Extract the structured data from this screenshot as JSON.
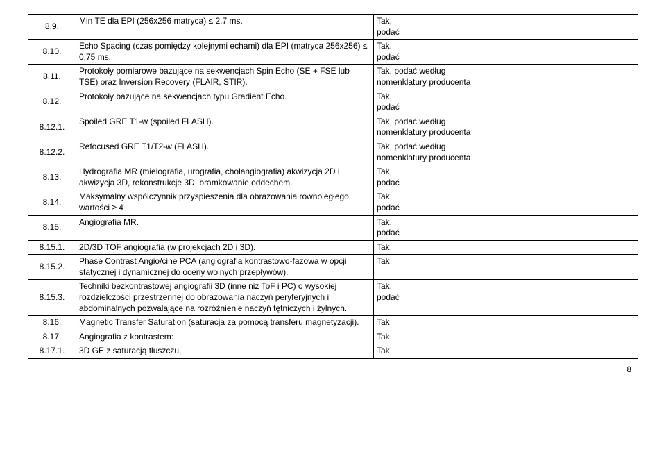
{
  "rows": [
    {
      "num": "8.9.",
      "desc": "Min TE dla EPI (256x256 matryca) ≤ 2,7 ms.",
      "req": "Tak,\npodać"
    },
    {
      "num": "8.10.",
      "desc": "Echo Spacing (czas pomiędzy kolejnymi echami) dla EPI (matryca 256x256) ≤ 0,75 ms.",
      "req": "Tak,\npodać"
    },
    {
      "num": "8.11.",
      "desc": "Protokoły pomiarowe bazujące na sekwencjach Spin Echo (SE + FSE lub TSE) oraz Inversion Recovery (FLAIR, STIR).",
      "req": "Tak, podać według nomenklatury producenta"
    },
    {
      "num": "8.12.",
      "desc": "Protokoły bazujące na sekwencjach typu Gradient Echo.",
      "req": "Tak,\npodać"
    },
    {
      "num": "8.12.1.",
      "desc": "Spoiled GRE T1-w (spoiled FLASH).",
      "req": "Tak, podać według nomenklatury producenta"
    },
    {
      "num": "8.12.2.",
      "desc": "Refocused GRE T1/T2-w (FLASH).",
      "req": "Tak, podać według nomenklatury producenta"
    },
    {
      "num": "8.13.",
      "desc": "Hydrografia MR (mielografia, urografia, cholangiografia) akwizycja 2D i akwizycja 3D, rekonstrukcje 3D, bramkowanie oddechem.",
      "req": "Tak,\npodać"
    },
    {
      "num": "8.14.",
      "desc": "Maksymalny wspólczynnik przyspieszenia dla obrazowania równoległego wartości ≥ 4",
      "req": "Tak,\npodać"
    },
    {
      "num": "8.15.",
      "desc": "Angiografia MR.",
      "req": "Tak,\npodać"
    },
    {
      "num": "8.15.1.",
      "desc": "2D/3D  TOF angiografia (w projekcjach 2D i 3D).",
      "req": "Tak"
    },
    {
      "num": "8.15.2.",
      "desc": "Phase Contrast Angio/cine PCA (angiografia kontrastowo-fazowa  w opcji statycznej i dynamicznej do oceny wolnych przepływów).",
      "req": "Tak"
    },
    {
      "num": "8.15.3.",
      "desc": "Techniki bezkontrastowej angiografii 3D (inne niż ToF i PC) o wysokiej rozdzielczości przestrzennej do obrazowania naczyń peryferyjnych i abdominalnych pozwalające na rozróżnienie naczyń tętniczych i żylnych.",
      "req": "Tak,\npodać"
    },
    {
      "num": "8.16.",
      "desc": "Magnetic Transfer Saturation (saturacja za pomocą transferu magnetyzacji).",
      "req": "Tak"
    },
    {
      "num": "8.17.",
      "desc": "Angiografia z kontrastem:",
      "req": "Tak"
    },
    {
      "num": "8.17.1.",
      "desc": "3D GE z saturacją tłuszczu,",
      "req": "Tak"
    }
  ],
  "page_number": "8"
}
